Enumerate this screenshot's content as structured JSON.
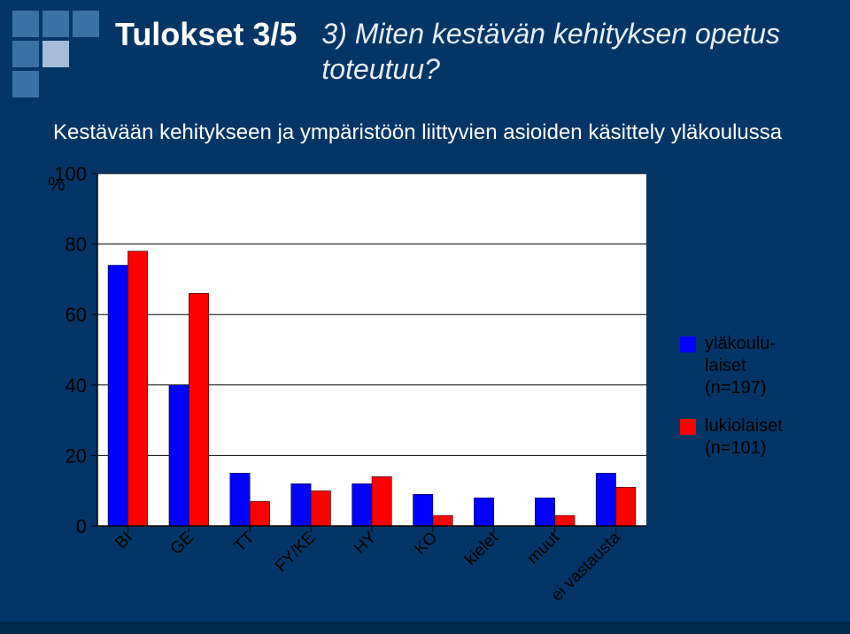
{
  "slide": {
    "title_left": "Tulokset 3/5",
    "title_right": "3)  Miten kestävän kehityksen opetus toteutuu?",
    "subtitle": "Kestävään kehitykseen ja ympäristöön liittyvien asioiden käsittely yläkoulussa",
    "y_unit": "%"
  },
  "chart": {
    "type": "bar",
    "background_color": "#ffffff",
    "grid_color": "#000000",
    "axis_color": "#000000",
    "categories": [
      "BI",
      "GE",
      "TT",
      "FY/KE",
      "HY",
      "KO",
      "kielet",
      "muut",
      "ei vastausta"
    ],
    "series": [
      {
        "name": "yläkoulu-\nlaiset\n(n=197)",
        "color": "#0000ff",
        "values": [
          74,
          40,
          15,
          12,
          12,
          9,
          8,
          8,
          15
        ]
      },
      {
        "name": "lukiolaiset\n(n=101)",
        "color": "#ff0000",
        "values": [
          78,
          66,
          7,
          10,
          14,
          3,
          0,
          3,
          11
        ]
      }
    ],
    "ylim": [
      0,
      100
    ],
    "ytick_step": 20,
    "bar_group_width": 0.65,
    "label_fontsize": 19,
    "tick_fontsize": 22,
    "legend_fontsize": 20
  },
  "style": {
    "page_bg": "#033666",
    "title_color": "#ffffff",
    "title_fontsize": 36,
    "subtitle_fontsize": 24,
    "title_right_fontsize": 32
  }
}
